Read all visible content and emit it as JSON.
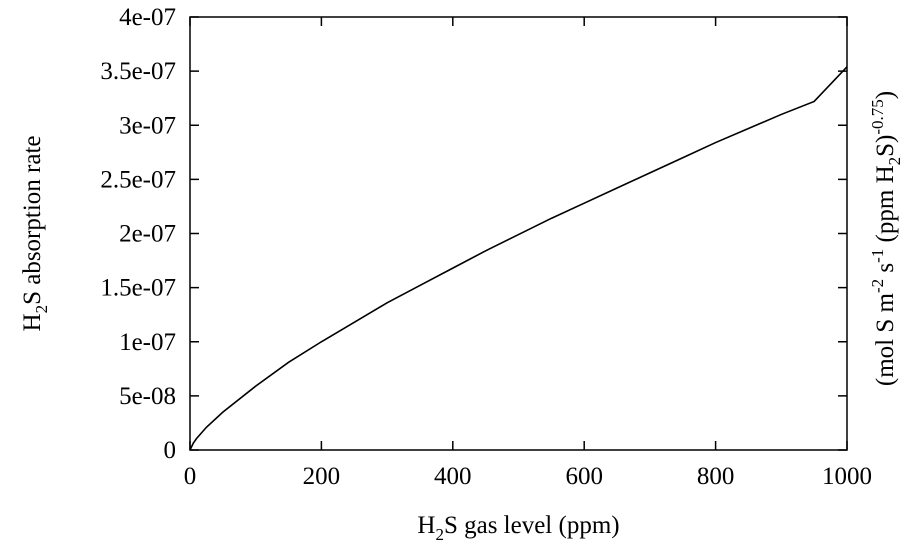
{
  "chart_data": {
    "type": "line",
    "xlabel": {
      "pre": "H",
      "sub": "2",
      "post": "S gas level (ppm)"
    },
    "ylabel": {
      "pre": "H",
      "sub": "2",
      "post": "S absorption rate"
    },
    "y2label": {
      "part1": "(mol S m",
      "sup1": "-2",
      "part2": " s",
      "sup2": "-1",
      "part3": " (ppm H",
      "sub1": "2",
      "part4": "S)",
      "sup3": "-0.75",
      "part5": ")"
    },
    "xlim": [
      0,
      1000
    ],
    "ylim": [
      0,
      4e-07
    ],
    "x_ticks": [
      0,
      200,
      400,
      600,
      800,
      1000
    ],
    "x_tick_labels": [
      "0",
      "200",
      "400",
      "600",
      "800",
      "1000"
    ],
    "y_ticks": [
      0,
      5e-08,
      1e-07,
      1.5e-07,
      2e-07,
      2.5e-07,
      3e-07,
      3.5e-07,
      4e-07
    ],
    "y_tick_labels": [
      "0",
      "5e-08",
      "1e-07",
      "1.5e-07",
      "2e-07",
      "2.5e-07",
      "3e-07",
      "3.5e-07",
      "4e-07"
    ],
    "grid": false,
    "legend": "none",
    "series": [
      {
        "color": "#000000",
        "x": [
          0,
          5,
          10,
          25,
          50,
          100,
          150,
          200,
          250,
          300,
          350,
          400,
          450,
          500,
          550,
          600,
          650,
          700,
          750,
          800,
          850,
          900,
          950,
          1000
        ],
        "y": [
          0,
          6.3e-09,
          1.06e-08,
          2.1e-08,
          3.5e-08,
          5.9e-08,
          8.1e-08,
          1e-07,
          1.18e-07,
          1.36e-07,
          1.52e-07,
          1.68e-07,
          1.84e-07,
          1.99e-07,
          2.14e-07,
          2.28e-07,
          2.42e-07,
          2.56e-07,
          2.7e-07,
          2.84e-07,
          2.97e-07,
          3.1e-07,
          3.22e-07,
          3.54e-07
        ]
      }
    ]
  }
}
